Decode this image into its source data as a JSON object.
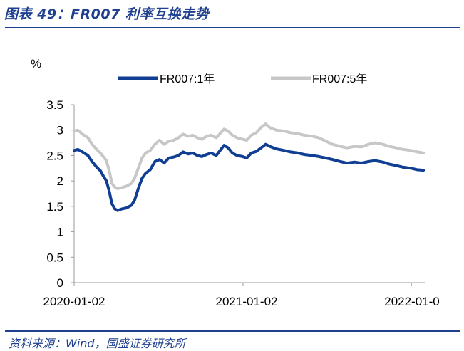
{
  "header": {
    "title": "图表 49：FR007 利率互换走势"
  },
  "footer": {
    "source": "资料来源：Wind，国盛证券研究所"
  },
  "chart_data": {
    "type": "line",
    "ylabel": "%",
    "ylim": [
      0,
      3.5
    ],
    "yticks": [
      "0",
      "0.5",
      "1",
      "1.5",
      "2",
      "2.5",
      "3",
      "3.5"
    ],
    "xlim": [
      "2020-01-02",
      "2022-01-31"
    ],
    "xticks": [
      "2020-01-02",
      "2021-01-02",
      "2022-01-0"
    ],
    "grid": false,
    "legend_position": "top",
    "series": [
      {
        "name": "FR007:1年",
        "color": "#0f3e93",
        "points": [
          [
            "2020-01-02",
            2.6
          ],
          [
            "2020-01-10",
            2.62
          ],
          [
            "2020-01-20",
            2.57
          ],
          [
            "2020-02-01",
            2.5
          ],
          [
            "2020-02-10",
            2.38
          ],
          [
            "2020-02-20",
            2.27
          ],
          [
            "2020-02-28",
            2.2
          ],
          [
            "2020-03-05",
            2.1
          ],
          [
            "2020-03-12",
            2.0
          ],
          [
            "2020-03-18",
            1.8
          ],
          [
            "2020-03-24",
            1.55
          ],
          [
            "2020-03-30",
            1.45
          ],
          [
            "2020-04-05",
            1.42
          ],
          [
            "2020-04-15",
            1.45
          ],
          [
            "2020-04-25",
            1.47
          ],
          [
            "2020-05-05",
            1.52
          ],
          [
            "2020-05-12",
            1.62
          ],
          [
            "2020-05-20",
            1.85
          ],
          [
            "2020-05-28",
            2.05
          ],
          [
            "2020-06-05",
            2.15
          ],
          [
            "2020-06-15",
            2.22
          ],
          [
            "2020-06-25",
            2.38
          ],
          [
            "2020-07-05",
            2.42
          ],
          [
            "2020-07-15",
            2.35
          ],
          [
            "2020-07-25",
            2.45
          ],
          [
            "2020-08-05",
            2.47
          ],
          [
            "2020-08-15",
            2.5
          ],
          [
            "2020-08-25",
            2.57
          ],
          [
            "2020-09-05",
            2.53
          ],
          [
            "2020-09-15",
            2.55
          ],
          [
            "2020-09-25",
            2.5
          ],
          [
            "2020-10-05",
            2.48
          ],
          [
            "2020-10-15",
            2.52
          ],
          [
            "2020-10-25",
            2.55
          ],
          [
            "2020-11-05",
            2.5
          ],
          [
            "2020-11-15",
            2.62
          ],
          [
            "2020-11-22",
            2.7
          ],
          [
            "2020-12-01",
            2.65
          ],
          [
            "2020-12-10",
            2.55
          ],
          [
            "2020-12-20",
            2.5
          ],
          [
            "2021-01-01",
            2.48
          ],
          [
            "2021-01-10",
            2.45
          ],
          [
            "2021-01-20",
            2.55
          ],
          [
            "2021-01-31",
            2.58
          ],
          [
            "2021-02-10",
            2.65
          ],
          [
            "2021-02-20",
            2.72
          ],
          [
            "2021-03-01",
            2.68
          ],
          [
            "2021-03-15",
            2.63
          ],
          [
            "2021-04-01",
            2.6
          ],
          [
            "2021-04-15",
            2.57
          ],
          [
            "2021-05-01",
            2.55
          ],
          [
            "2021-05-15",
            2.52
          ],
          [
            "2021-06-01",
            2.5
          ],
          [
            "2021-06-15",
            2.48
          ],
          [
            "2021-07-01",
            2.45
          ],
          [
            "2021-07-15",
            2.42
          ],
          [
            "2021-08-01",
            2.38
          ],
          [
            "2021-08-15",
            2.35
          ],
          [
            "2021-09-01",
            2.37
          ],
          [
            "2021-09-15",
            2.35
          ],
          [
            "2021-10-01",
            2.38
          ],
          [
            "2021-10-15",
            2.4
          ],
          [
            "2021-11-01",
            2.37
          ],
          [
            "2021-11-15",
            2.33
          ],
          [
            "2021-12-01",
            2.3
          ],
          [
            "2021-12-15",
            2.27
          ],
          [
            "2022-01-01",
            2.25
          ],
          [
            "2022-01-15",
            2.22
          ],
          [
            "2022-01-28",
            2.21
          ]
        ]
      },
      {
        "name": "FR007:5年",
        "color": "#c7c7c7",
        "points": [
          [
            "2020-01-02",
            2.98
          ],
          [
            "2020-01-10",
            3.0
          ],
          [
            "2020-01-20",
            2.92
          ],
          [
            "2020-02-01",
            2.85
          ],
          [
            "2020-02-10",
            2.72
          ],
          [
            "2020-02-20",
            2.62
          ],
          [
            "2020-02-28",
            2.55
          ],
          [
            "2020-03-05",
            2.48
          ],
          [
            "2020-03-12",
            2.4
          ],
          [
            "2020-03-18",
            2.2
          ],
          [
            "2020-03-24",
            1.95
          ],
          [
            "2020-03-30",
            1.88
          ],
          [
            "2020-04-05",
            1.85
          ],
          [
            "2020-04-15",
            1.87
          ],
          [
            "2020-04-25",
            1.9
          ],
          [
            "2020-05-05",
            1.95
          ],
          [
            "2020-05-12",
            2.05
          ],
          [
            "2020-05-20",
            2.25
          ],
          [
            "2020-05-28",
            2.45
          ],
          [
            "2020-06-05",
            2.55
          ],
          [
            "2020-06-15",
            2.6
          ],
          [
            "2020-06-25",
            2.72
          ],
          [
            "2020-07-05",
            2.8
          ],
          [
            "2020-07-15",
            2.72
          ],
          [
            "2020-07-25",
            2.78
          ],
          [
            "2020-08-05",
            2.8
          ],
          [
            "2020-08-15",
            2.85
          ],
          [
            "2020-08-25",
            2.92
          ],
          [
            "2020-09-05",
            2.88
          ],
          [
            "2020-09-15",
            2.9
          ],
          [
            "2020-09-25",
            2.85
          ],
          [
            "2020-10-05",
            2.82
          ],
          [
            "2020-10-15",
            2.88
          ],
          [
            "2020-10-25",
            2.9
          ],
          [
            "2020-11-05",
            2.85
          ],
          [
            "2020-11-15",
            2.95
          ],
          [
            "2020-11-22",
            3.02
          ],
          [
            "2020-12-01",
            2.98
          ],
          [
            "2020-12-10",
            2.9
          ],
          [
            "2020-12-20",
            2.85
          ],
          [
            "2021-01-01",
            2.82
          ],
          [
            "2021-01-10",
            2.8
          ],
          [
            "2021-01-20",
            2.9
          ],
          [
            "2021-01-31",
            2.95
          ],
          [
            "2021-02-10",
            3.05
          ],
          [
            "2021-02-20",
            3.12
          ],
          [
            "2021-03-01",
            3.05
          ],
          [
            "2021-03-15",
            3.0
          ],
          [
            "2021-04-01",
            2.98
          ],
          [
            "2021-04-15",
            2.95
          ],
          [
            "2021-05-01",
            2.93
          ],
          [
            "2021-05-15",
            2.9
          ],
          [
            "2021-06-01",
            2.88
          ],
          [
            "2021-06-15",
            2.85
          ],
          [
            "2021-07-01",
            2.78
          ],
          [
            "2021-07-15",
            2.72
          ],
          [
            "2021-08-01",
            2.68
          ],
          [
            "2021-08-15",
            2.65
          ],
          [
            "2021-09-01",
            2.68
          ],
          [
            "2021-09-15",
            2.67
          ],
          [
            "2021-10-01",
            2.72
          ],
          [
            "2021-10-15",
            2.75
          ],
          [
            "2021-11-01",
            2.72
          ],
          [
            "2021-11-15",
            2.68
          ],
          [
            "2021-12-01",
            2.65
          ],
          [
            "2021-12-15",
            2.62
          ],
          [
            "2022-01-01",
            2.6
          ],
          [
            "2022-01-15",
            2.57
          ],
          [
            "2022-01-28",
            2.55
          ]
        ]
      }
    ]
  }
}
